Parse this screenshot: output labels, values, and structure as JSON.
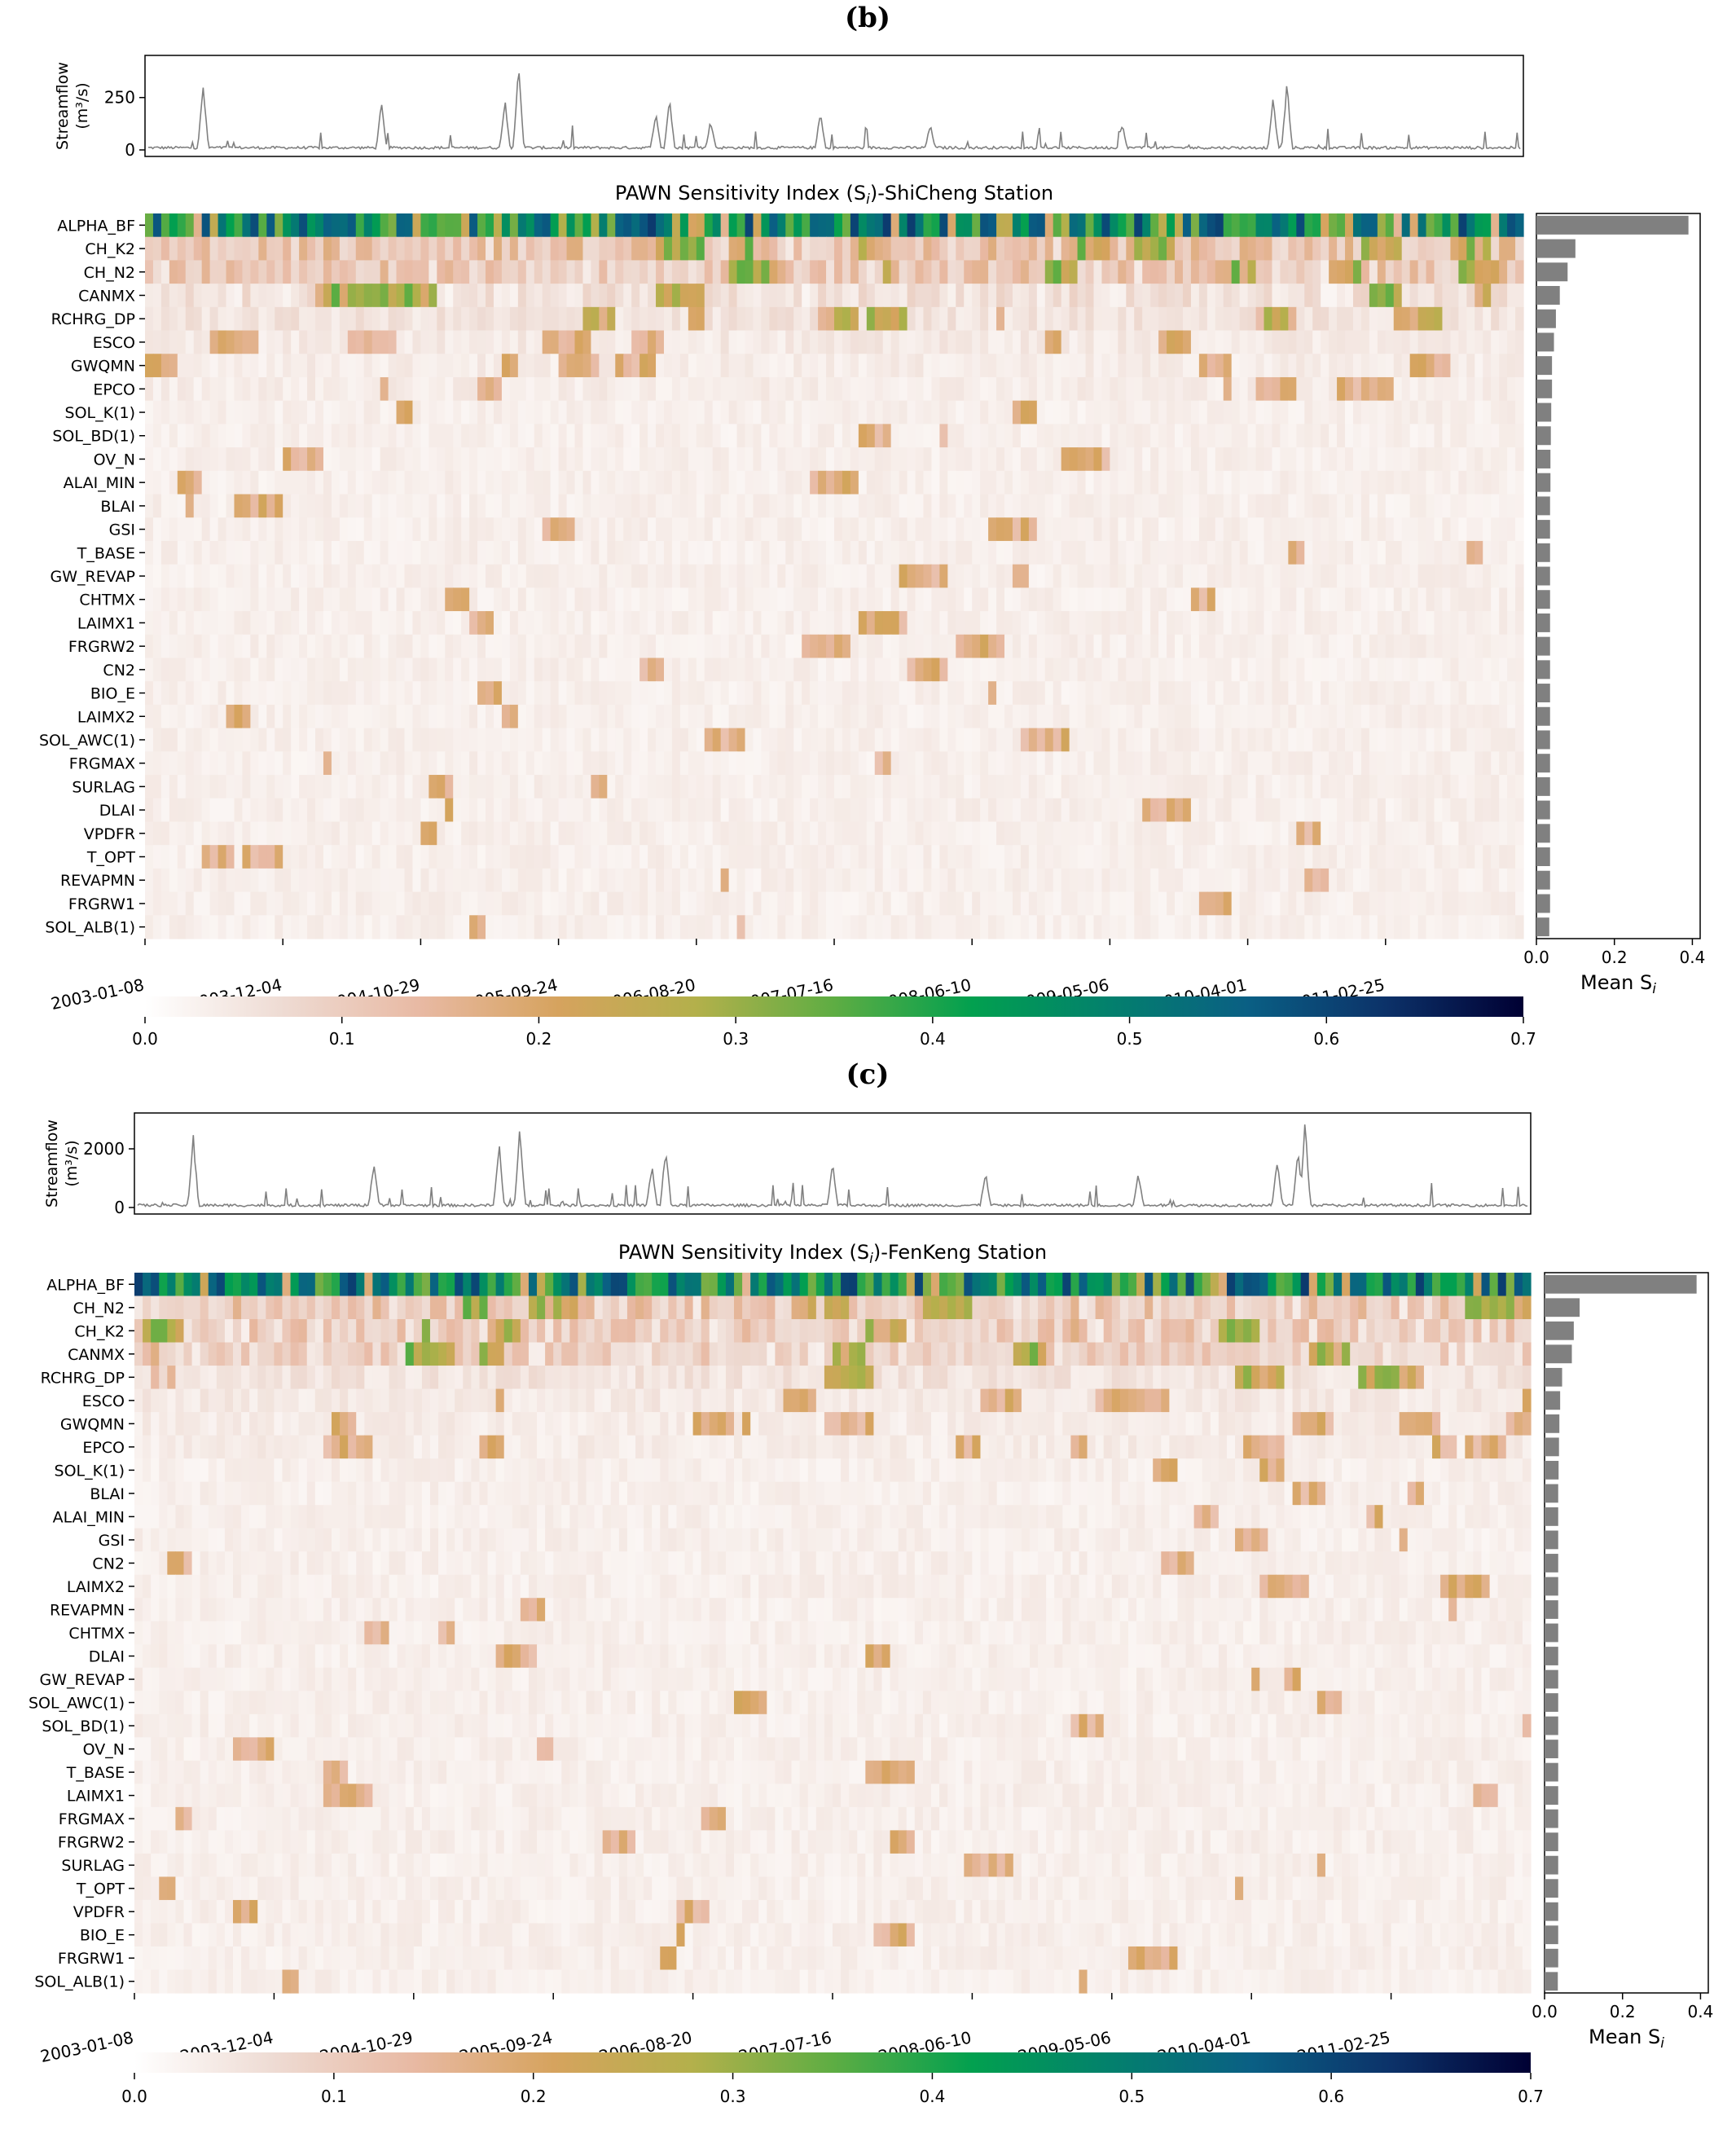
{
  "colorbar": {
    "colors": [
      "#ffffff",
      "#eedbd3",
      "#e8b9a3",
      "#d6a35e",
      "#b3b04b",
      "#5ead43",
      "#02a04f",
      "#03806d",
      "#0a5f84",
      "#0c3269",
      "#000033"
    ],
    "ticks": [
      "0.0",
      "0.1",
      "0.2",
      "0.3",
      "0.4",
      "0.5",
      "0.6",
      "0.7"
    ],
    "range": [
      0,
      0.7
    ]
  },
  "panels": [
    {
      "panel_label": "(b)",
      "title": "PAWN Sensitivity Index (S",
      "title_sub": "i",
      "title_rest": ")-ShiCheng Station",
      "streamflow_ylabel_1": "Streamflow",
      "streamflow_ylabel_2": "(m³/s)",
      "streamflow_ticks": [
        "0",
        "250"
      ],
      "streamflow_max": 420,
      "date_labels": [
        "2003-01-08",
        "2003-12-04",
        "2004-10-29",
        "2005-09-24",
        "2006-08-20",
        "2007-07-16",
        "2008-06-10",
        "2009-05-06",
        "2010-04-01",
        "2011-02-25"
      ],
      "mean_xlabel": "Mean S",
      "mean_xlabel_sub": "i",
      "mean_ticks": [
        "0.0",
        "0.2",
        "0.4"
      ],
      "params": [
        "ALPHA_BF",
        "CH_K2",
        "CH_N2",
        "CANMX",
        "RCHRG_DP",
        "ESCO",
        "GWQMN",
        "EPCO",
        "SOL_K(1)",
        "SOL_BD(1)",
        "OV_N",
        "ALAI_MIN",
        "BLAI",
        "GSI",
        "T_BASE",
        "GW_REVAP",
        "CHTMX",
        "LAIMX1",
        "FRGRW2",
        "CN2",
        "BIO_E",
        "LAIMX2",
        "SOL_AWC(1)",
        "FRGMAX",
        "SURLAG",
        "DLAI",
        "VPDFR",
        "T_OPT",
        "REVAPMN",
        "FRGRW1",
        "SOL_ALB(1)"
      ],
      "mean_si": [
        0.39,
        0.1,
        0.08,
        0.06,
        0.05,
        0.045,
        0.04,
        0.04,
        0.038,
        0.037,
        0.036,
        0.036,
        0.035,
        0.035,
        0.035,
        0.035,
        0.035,
        0.035,
        0.035,
        0.035,
        0.035,
        0.035,
        0.035,
        0.035,
        0.035,
        0.035,
        0.035,
        0.035,
        0.035,
        0.035,
        0.033
      ]
    },
    {
      "panel_label": "(c)",
      "title": "PAWN Sensitivity Index (S",
      "title_sub": "i",
      "title_rest": ")-FenKeng Station",
      "streamflow_ylabel_1": "Streamflow",
      "streamflow_ylabel_2": "(m³/s)",
      "streamflow_ticks": [
        "0",
        "2000"
      ],
      "streamflow_max": 3000,
      "date_labels": [
        "2003-01-08",
        "2003-12-04",
        "2004-10-29",
        "2005-09-24",
        "2006-08-20",
        "2007-07-16",
        "2008-06-10",
        "2009-05-06",
        "2010-04-01",
        "2011-02-25"
      ],
      "mean_xlabel": "Mean S",
      "mean_xlabel_sub": "i",
      "mean_ticks": [
        "0.0",
        "0.2",
        "0.4"
      ],
      "params": [
        "ALPHA_BF",
        "CH_N2",
        "CH_K2",
        "CANMX",
        "RCHRG_DP",
        "ESCO",
        "GWQMN",
        "EPCO",
        "SOL_K(1)",
        "BLAI",
        "ALAI_MIN",
        "GSI",
        "CN2",
        "LAIMX2",
        "REVAPMN",
        "CHTMX",
        "DLAI",
        "GW_REVAP",
        "SOL_AWC(1)",
        "SOL_BD(1)",
        "OV_N",
        "T_BASE",
        "LAIMX1",
        "FRGMAX",
        "FRGRW2",
        "SURLAG",
        "T_OPT",
        "VPDFR",
        "BIO_E",
        "FRGRW1",
        "SOL_ALB(1)"
      ],
      "mean_si": [
        0.39,
        0.09,
        0.075,
        0.07,
        0.045,
        0.04,
        0.038,
        0.037,
        0.036,
        0.035,
        0.035,
        0.035,
        0.035,
        0.035,
        0.035,
        0.035,
        0.035,
        0.035,
        0.035,
        0.035,
        0.035,
        0.035,
        0.035,
        0.035,
        0.035,
        0.035,
        0.035,
        0.035,
        0.035,
        0.035,
        0.034
      ]
    }
  ],
  "chart_data": [
    {
      "type": "heatmap",
      "title": "PAWN Sensitivity Index (Si)-ShiCheng Station",
      "rows": [
        "ALPHA_BF",
        "CH_K2",
        "CH_N2",
        "CANMX",
        "RCHRG_DP",
        "ESCO",
        "GWQMN",
        "EPCO",
        "SOL_K(1)",
        "SOL_BD(1)",
        "OV_N",
        "ALAI_MIN",
        "BLAI",
        "GSI",
        "T_BASE",
        "GW_REVAP",
        "CHTMX",
        "LAIMX1",
        "FRGRW2",
        "CN2",
        "BIO_E",
        "LAIMX2",
        "SOL_AWC(1)",
        "FRGMAX",
        "SURLAG",
        "DLAI",
        "VPDFR",
        "T_OPT",
        "REVAPMN",
        "FRGRW1",
        "SOL_ALB(1)"
      ],
      "x_labels": [
        "2003-01-08",
        "2003-12-04",
        "2004-10-29",
        "2005-09-24",
        "2006-08-20",
        "2007-07-16",
        "2008-06-10",
        "2009-05-06",
        "2010-04-01",
        "2011-02-25"
      ],
      "row_typical_si": [
        0.45,
        0.12,
        0.11,
        0.06,
        0.05,
        0.04,
        0.035,
        0.035,
        0.03,
        0.03,
        0.03,
        0.03,
        0.03,
        0.03,
        0.03,
        0.03,
        0.03,
        0.03,
        0.03,
        0.03,
        0.03,
        0.03,
        0.03,
        0.03,
        0.03,
        0.03,
        0.03,
        0.03,
        0.03,
        0.03,
        0.03
      ],
      "colorbar_range": [
        0,
        0.7
      ],
      "side_bar_xlabel": "Mean Si",
      "side_bar_xlim": [
        0,
        0.42
      ]
    },
    {
      "type": "heatmap",
      "title": "PAWN Sensitivity Index (Si)-FenKeng Station",
      "rows": [
        "ALPHA_BF",
        "CH_N2",
        "CH_K2",
        "CANMX",
        "RCHRG_DP",
        "ESCO",
        "GWQMN",
        "EPCO",
        "SOL_K(1)",
        "BLAI",
        "ALAI_MIN",
        "GSI",
        "CN2",
        "LAIMX2",
        "REVAPMN",
        "CHTMX",
        "DLAI",
        "GW_REVAP",
        "SOL_AWC(1)",
        "SOL_BD(1)",
        "OV_N",
        "T_BASE",
        "LAIMX1",
        "FRGMAX",
        "FRGRW2",
        "SURLAG",
        "T_OPT",
        "VPDFR",
        "BIO_E",
        "FRGRW1",
        "SOL_ALB(1)"
      ],
      "x_labels": [
        "2003-01-08",
        "2003-12-04",
        "2004-10-29",
        "2005-09-24",
        "2006-08-20",
        "2007-07-16",
        "2008-06-10",
        "2009-05-06",
        "2010-04-01",
        "2011-02-25"
      ],
      "row_typical_si": [
        0.45,
        0.11,
        0.1,
        0.09,
        0.05,
        0.04,
        0.035,
        0.035,
        0.03,
        0.03,
        0.03,
        0.03,
        0.03,
        0.03,
        0.03,
        0.03,
        0.03,
        0.03,
        0.03,
        0.03,
        0.03,
        0.03,
        0.03,
        0.03,
        0.03,
        0.03,
        0.03,
        0.03,
        0.03,
        0.03,
        0.03
      ],
      "colorbar_range": [
        0,
        0.7
      ],
      "side_bar_xlabel": "Mean Si",
      "side_bar_xlim": [
        0,
        0.42
      ]
    }
  ]
}
